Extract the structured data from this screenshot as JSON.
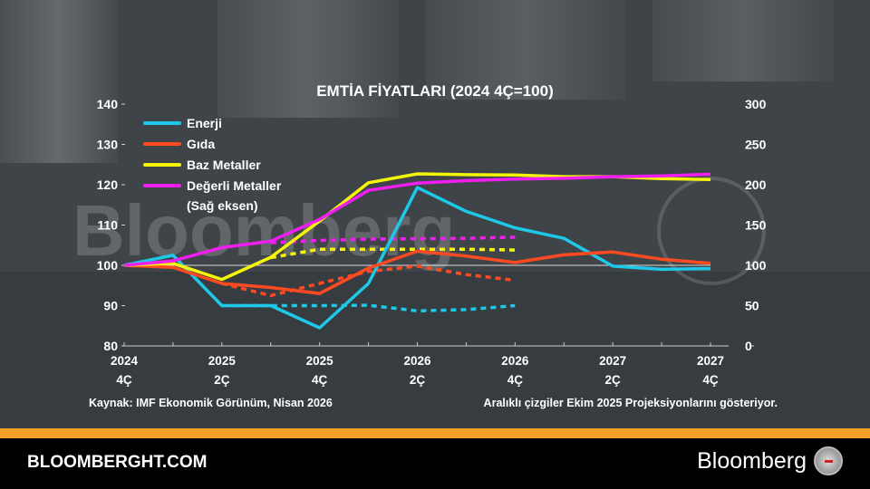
{
  "chart_data": {
    "type": "line",
    "title": "EMTİA FİYATLARI (2024 4Ç=100)",
    "x_ticks": [
      {
        "year": "2024",
        "q": "4Ç"
      },
      {
        "year": "2025",
        "q": "2Ç"
      },
      {
        "year": "2025",
        "q": "4Ç"
      },
      {
        "year": "2026",
        "q": "2Ç"
      },
      {
        "year": "2026",
        "q": "4Ç"
      },
      {
        "year": "2027",
        "q": "2Ç"
      },
      {
        "year": "2027",
        "q": "4Ç"
      }
    ],
    "x": [
      "2024 4Ç",
      "2025 1Ç",
      "2025 2Ç",
      "2025 3Ç",
      "2025 4Ç",
      "2026 1Ç",
      "2026 2Ç",
      "2026 3Ç",
      "2026 4Ç",
      "2027 1Ç",
      "2027 2Ç",
      "2027 3Ç",
      "2027 4Ç"
    ],
    "ylim_left": [
      80,
      140
    ],
    "yticks_left": [
      "80",
      "90",
      "100",
      "110",
      "120",
      "130",
      "140"
    ],
    "ylim_right": [
      0,
      300
    ],
    "yticks_right": [
      "0",
      "50",
      "100",
      "150",
      "200",
      "250",
      "300"
    ],
    "series": [
      {
        "name": "Enerji",
        "color": "#1ec8e8",
        "axis": "left",
        "values": [
          100,
          102.5,
          90,
          90,
          84.5,
          95.5,
          119.3,
          113.4,
          109.3,
          106.7,
          99.8,
          99,
          99.2
        ],
        "projection": [
          null,
          null,
          90,
          90,
          90,
          90.1,
          88.7,
          89,
          90,
          null,
          null,
          null,
          null
        ]
      },
      {
        "name": "Gıda",
        "color": "#ff4a22",
        "axis": "left",
        "values": [
          100,
          99.5,
          95.5,
          94.5,
          93,
          99.3,
          103.5,
          102.3,
          100.7,
          102.6,
          103.3,
          101.5,
          100.5
        ],
        "projection": [
          null,
          null,
          95.5,
          92.5,
          95.5,
          98.5,
          99.8,
          97.7,
          96.3,
          null,
          null,
          null,
          null
        ]
      },
      {
        "name": "Baz Metaller",
        "color": "#f5f50a",
        "axis": "left",
        "values": [
          100,
          100.5,
          96.5,
          102,
          111,
          120.5,
          122.7,
          122.5,
          122.4,
          122,
          122,
          121.5,
          121.3
        ],
        "projection": [
          null,
          null,
          null,
          101.9,
          104,
          104,
          104,
          104,
          103.8,
          null,
          null,
          null,
          null
        ]
      },
      {
        "name": "Değerli Metaller",
        "name2": "(Sağ eksen)",
        "color": "#f01ef0",
        "axis": "right",
        "values": [
          100,
          105.5,
          122,
          130,
          157,
          193,
          202,
          205,
          207,
          208,
          210,
          211,
          213
        ],
        "projection": [
          null,
          null,
          null,
          128,
          131,
          132.5,
          133,
          133.5,
          135,
          null,
          null,
          null,
          null
        ]
      }
    ],
    "source": "Kaynak: IMF Ekonomik Görünüm, Nisan 2026",
    "note": "Aralıklı çizgiler Ekim 2025 Projeksiyonlarını gösteriyor.",
    "watermark": "Bloomberg"
  },
  "footer": {
    "site": "BLOOMBERGHT.COM",
    "brand": "Bloomberg"
  }
}
